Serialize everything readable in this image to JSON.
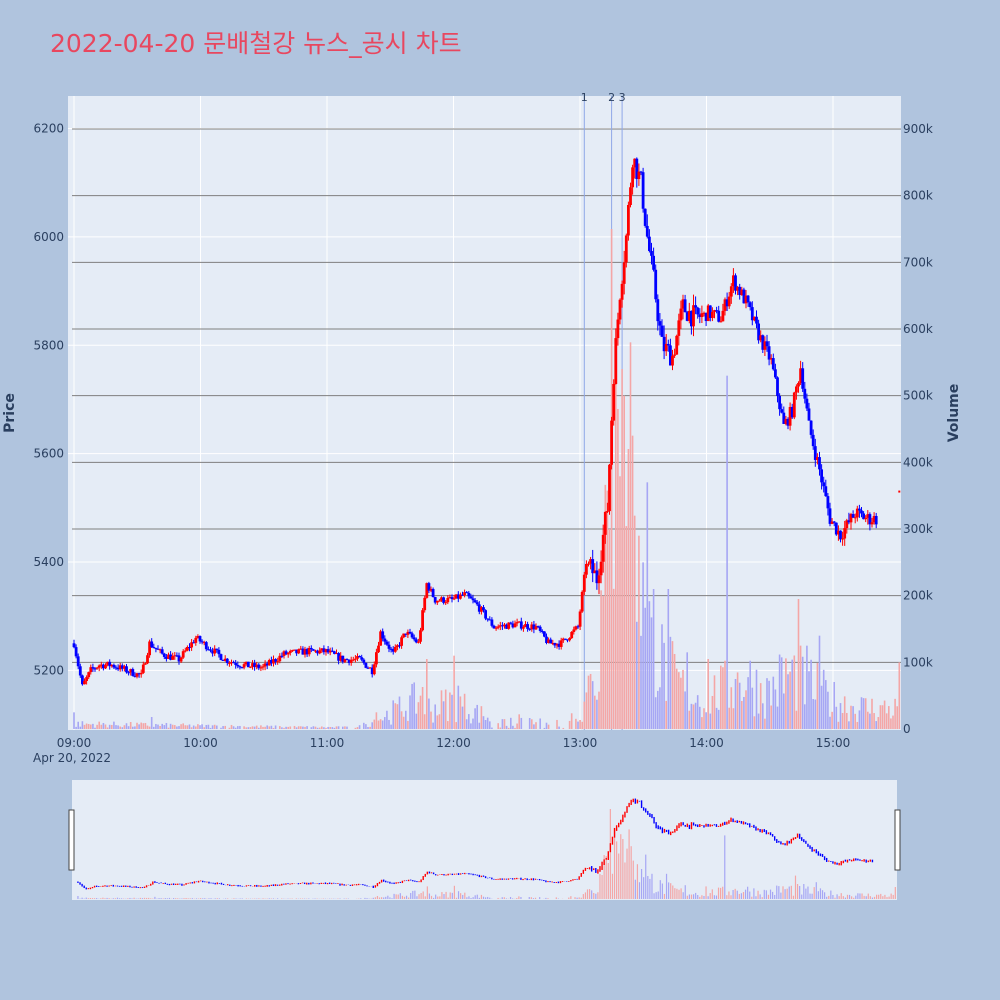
{
  "title": "2022-04-20 문배철강 뉴스_공시 차트",
  "colors": {
    "background": "#b0c4de",
    "plot_bg": "#e5ecf6",
    "up": "#ff0000",
    "down": "#0000ff",
    "up_volume": "#f4a6a6",
    "down_volume": "#a6a6f4",
    "marker_line": "#8fa8e8",
    "volume_grid": "#7f7f7f",
    "title": "#e8475f"
  },
  "chart_data": {
    "type": "candlestick",
    "date_label": "Apr 20, 2022",
    "xlabel": "",
    "ylabel_left": "Price",
    "ylabel_right": "Volume",
    "x_tick_labels": [
      "09:00",
      "10:00",
      "11:00",
      "12:00",
      "13:00",
      "14:00",
      "15:00"
    ],
    "y_tick_values": [
      5200,
      5400,
      5600,
      5800,
      6000,
      6200
    ],
    "volume_tick_labels": [
      "0",
      "100k",
      "200k",
      "300k",
      "400k",
      "500k",
      "600k",
      "700k",
      "800k",
      "900k"
    ],
    "price_range": [
      5090,
      6260
    ],
    "volume_range": [
      0,
      950000
    ],
    "x_range_minutes": [
      0,
      393
    ],
    "news_markers": [
      {
        "label": "1",
        "minute": 243
      },
      {
        "label": "2",
        "minute": 256
      },
      {
        "label": "3",
        "minute": 261
      }
    ],
    "price_path": [
      [
        0,
        5250
      ],
      [
        4,
        5170
      ],
      [
        8,
        5200
      ],
      [
        12,
        5210
      ],
      [
        18,
        5210
      ],
      [
        25,
        5200
      ],
      [
        32,
        5190
      ],
      [
        36,
        5250
      ],
      [
        42,
        5230
      ],
      [
        50,
        5220
      ],
      [
        58,
        5260
      ],
      [
        65,
        5240
      ],
      [
        72,
        5220
      ],
      [
        80,
        5210
      ],
      [
        90,
        5205
      ],
      [
        100,
        5230
      ],
      [
        110,
        5235
      ],
      [
        120,
        5235
      ],
      [
        128,
        5220
      ],
      [
        136,
        5220
      ],
      [
        142,
        5200
      ],
      [
        146,
        5270
      ],
      [
        152,
        5230
      ],
      [
        158,
        5270
      ],
      [
        164,
        5250
      ],
      [
        168,
        5360
      ],
      [
        172,
        5330
      ],
      [
        180,
        5330
      ],
      [
        186,
        5340
      ],
      [
        192,
        5320
      ],
      [
        200,
        5280
      ],
      [
        210,
        5285
      ],
      [
        220,
        5280
      ],
      [
        226,
        5250
      ],
      [
        232,
        5250
      ],
      [
        240,
        5280
      ],
      [
        244,
        5400
      ],
      [
        249,
        5370
      ],
      [
        254,
        5500
      ],
      [
        257,
        5750
      ],
      [
        260,
        5900
      ],
      [
        263,
        6000
      ],
      [
        266,
        6150
      ],
      [
        270,
        6100
      ],
      [
        273,
        6000
      ],
      [
        276,
        5920
      ],
      [
        280,
        5800
      ],
      [
        285,
        5780
      ],
      [
        290,
        5870
      ],
      [
        296,
        5850
      ],
      [
        302,
        5860
      ],
      [
        308,
        5850
      ],
      [
        314,
        5920
      ],
      [
        320,
        5880
      ],
      [
        326,
        5820
      ],
      [
        332,
        5770
      ],
      [
        338,
        5650
      ],
      [
        342,
        5680
      ],
      [
        346,
        5760
      ],
      [
        350,
        5650
      ],
      [
        355,
        5570
      ],
      [
        360,
        5480
      ],
      [
        365,
        5450
      ],
      [
        372,
        5490
      ],
      [
        378,
        5480
      ],
      [
        382,
        5480
      ]
    ],
    "volume_path": [
      [
        0,
        10000
      ],
      [
        30,
        8000
      ],
      [
        60,
        6000
      ],
      [
        100,
        4000
      ],
      [
        135,
        3000
      ],
      [
        145,
        20000
      ],
      [
        165,
        60000
      ],
      [
        170,
        40000
      ],
      [
        180,
        55000
      ],
      [
        200,
        18000
      ],
      [
        220,
        12000
      ],
      [
        235,
        15000
      ],
      [
        243,
        50000
      ],
      [
        250,
        150000
      ],
      [
        256,
        450000
      ],
      [
        260,
        600000
      ],
      [
        265,
        380000
      ],
      [
        270,
        250000
      ],
      [
        275,
        160000
      ],
      [
        282,
        120000
      ],
      [
        290,
        80000
      ],
      [
        300,
        60000
      ],
      [
        310,
        80000
      ],
      [
        320,
        100000
      ],
      [
        330,
        70000
      ],
      [
        340,
        110000
      ],
      [
        350,
        90000
      ],
      [
        360,
        60000
      ],
      [
        370,
        45000
      ],
      [
        382,
        40000
      ]
    ],
    "volume_spikes": [
      {
        "minute": 0,
        "volume": 25000
      },
      {
        "minute": 37,
        "volume": 18000
      },
      {
        "minute": 144,
        "volume": 25000
      },
      {
        "minute": 166,
        "volume": 63000
      },
      {
        "minute": 168,
        "volume": 105000
      },
      {
        "minute": 181,
        "volume": 110000
      },
      {
        "minute": 183,
        "volume": 65000
      },
      {
        "minute": 212,
        "volume": 22000
      },
      {
        "minute": 245,
        "volume": 80000
      },
      {
        "minute": 252,
        "volume": 200000
      },
      {
        "minute": 255,
        "volume": 300000
      },
      {
        "minute": 256,
        "volume": 750000
      },
      {
        "minute": 258,
        "volume": 580000
      },
      {
        "minute": 259,
        "volume": 480000
      },
      {
        "minute": 261,
        "volume": 540000
      },
      {
        "minute": 262,
        "volume": 500000
      },
      {
        "minute": 264,
        "volume": 420000
      },
      {
        "minute": 265,
        "volume": 580000
      },
      {
        "minute": 266,
        "volume": 440000
      },
      {
        "minute": 267,
        "volume": 320000
      },
      {
        "minute": 269,
        "volume": 290000
      },
      {
        "minute": 271,
        "volume": 250000
      },
      {
        "minute": 273,
        "volume": 370000
      },
      {
        "minute": 276,
        "volume": 210000
      },
      {
        "minute": 283,
        "volume": 210000
      },
      {
        "minute": 292,
        "volume": 115000
      },
      {
        "minute": 302,
        "volume": 105000
      },
      {
        "minute": 311,
        "volume": 530000
      },
      {
        "minute": 315,
        "volume": 75000
      },
      {
        "minute": 345,
        "volume": 195000
      },
      {
        "minute": 349,
        "volume": 125000
      },
      {
        "minute": 355,
        "volume": 140000
      },
      {
        "minute": 393,
        "volume": 100000
      }
    ],
    "after_hours_price": {
      "minute": 393,
      "price": 5530
    }
  }
}
